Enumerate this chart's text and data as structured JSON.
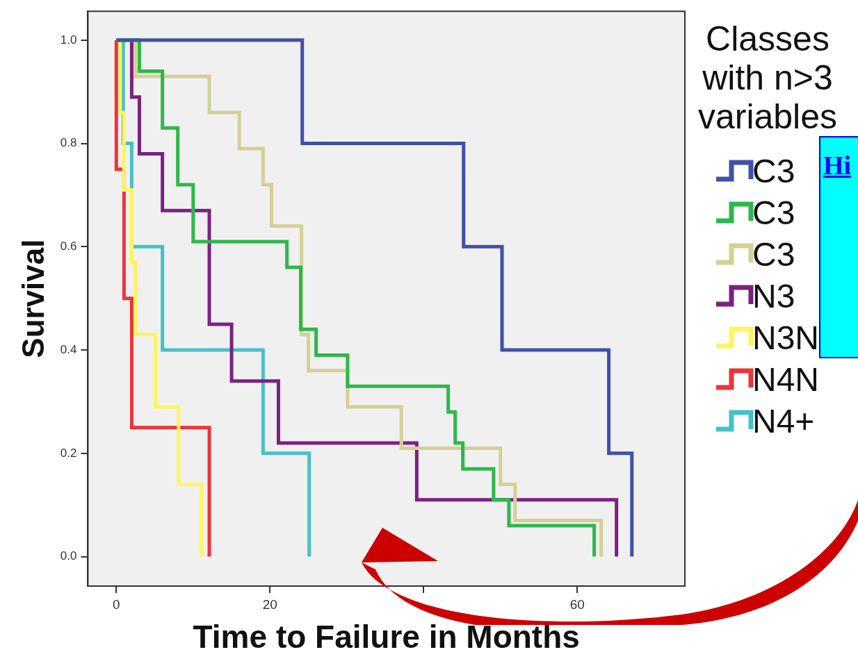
{
  "chart_data": {
    "type": "step",
    "xlabel": "Time to Failure in Months",
    "ylabel": "Survival",
    "legend_title": "Classes with n>3 variables",
    "legend": "right",
    "xlim": [
      -3.7,
      74
    ],
    "xticks": [
      0,
      20,
      {
        "value": 40,
        "label": null
      },
      60
    ],
    "ylim": [
      -0.057,
      1.056
    ],
    "yticks": [
      {
        "value": 0,
        "label": "0.0"
      },
      {
        "value": 0.2,
        "label": "0.2"
      },
      {
        "value": 0.4,
        "label": "0.4"
      },
      {
        "value": 0.6,
        "label": "0.6"
      },
      {
        "value": 0.8,
        "label": "0.8"
      },
      {
        "value": 1,
        "label": "1.0"
      }
    ],
    "annotations": [
      "Hi"
    ],
    "series": [
      {
        "name": "C3",
        "color": "#3f51a8",
        "x": [
          0,
          24.2,
          45.2,
          50.2,
          64.1,
          67.1
        ],
        "values": [
          1,
          0.8,
          0.6,
          0.4,
          0.2,
          0
        ]
      },
      {
        "name": "C3",
        "color": "#2db84a",
        "x": [
          0,
          3.0,
          6.0,
          8.0,
          10.0,
          22.2,
          24.0,
          26.0,
          30.1,
          43.2,
          44.1,
          45.1,
          49.1,
          51.1,
          62.2
        ],
        "values": [
          1,
          0.94,
          0.83,
          0.72,
          0.61,
          0.56,
          0.44,
          0.39,
          0.33,
          0.28,
          0.22,
          0.17,
          0.11,
          0.06,
          0
        ]
      },
      {
        "name": "C3",
        "color": "#d4d096",
        "x": [
          0,
          2.5,
          12.1,
          16.0,
          19.1,
          20.2,
          24.1,
          25.0,
          30.1,
          37.1,
          50.0,
          51.9,
          63.1
        ],
        "values": [
          1,
          0.93,
          0.86,
          0.79,
          0.72,
          0.64,
          0.43,
          0.36,
          0.29,
          0.21,
          0.14,
          0.07,
          0
        ]
      },
      {
        "name": "N3",
        "color": "#7b2180",
        "x": [
          0,
          2.0,
          3.0,
          6.0,
          12.1,
          15.0,
          21.1,
          39.1,
          65.1
        ],
        "values": [
          1,
          0.89,
          0.78,
          0.67,
          0.45,
          0.34,
          0.22,
          0.11,
          0
        ]
      },
      {
        "name": "N3N",
        "color": "#fff55a",
        "x": [
          0,
          0.5,
          1.0,
          2.0,
          2.5,
          5.1,
          8.1,
          11.1
        ],
        "values": [
          1,
          0.86,
          0.71,
          0.57,
          0.43,
          0.29,
          0.14,
          0
        ]
      },
      {
        "name": "N4N",
        "color": "#ee3438",
        "x": [
          0,
          0,
          1.0,
          2.0,
          12.1
        ],
        "values": [
          1,
          0.75,
          0.5,
          0.25,
          0
        ]
      },
      {
        "name": "N4+",
        "color": "#45c1c6",
        "x": [
          0,
          0.9,
          2.0,
          6.0,
          19.1,
          25.1
        ],
        "values": [
          1,
          0.8,
          0.6,
          0.4,
          0.2,
          0
        ]
      }
    ]
  }
}
